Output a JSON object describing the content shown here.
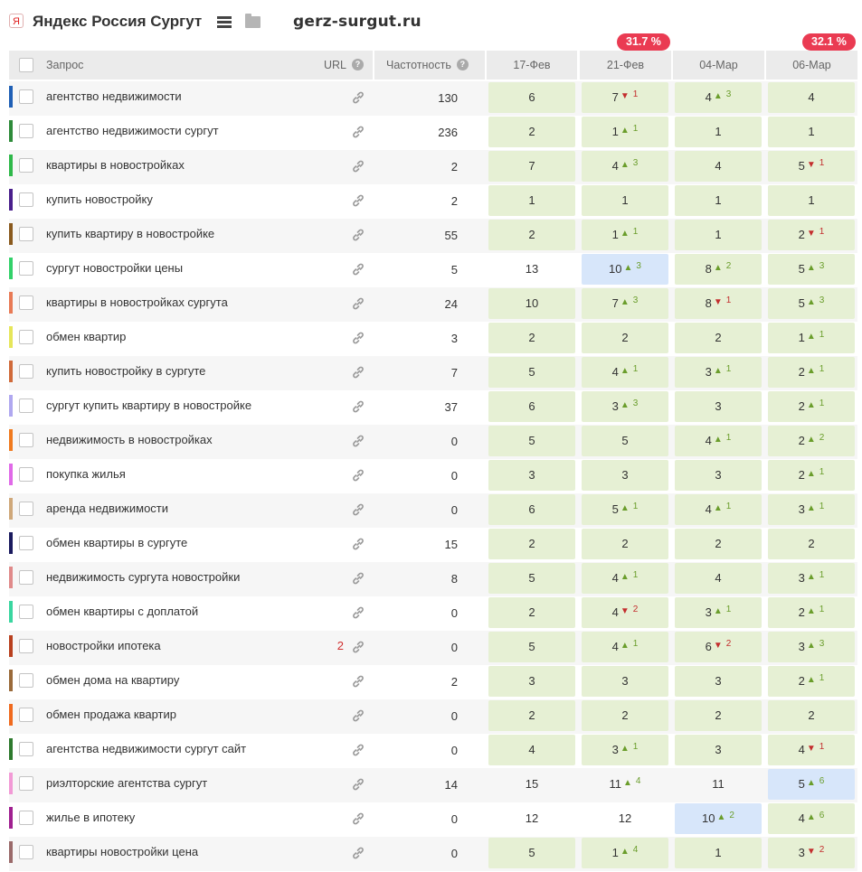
{
  "header": {
    "title": "Яндекс Россия Сургут",
    "site": "gerz-surgut.ru"
  },
  "badges": [
    "31.7 %",
    "32.1 %"
  ],
  "columns": {
    "query": "Запрос",
    "url": "URL",
    "frequency": "Частотность",
    "dates": [
      "17-Фев",
      "21-Фев",
      "04-Мар",
      "06-Мар"
    ]
  },
  "rows": [
    {
      "query": "агентство недвижимости",
      "color": "#1f5fb5",
      "url_count": "",
      "freq": "130",
      "cells": [
        [
          "6",
          "g",
          null,
          ""
        ],
        [
          "7",
          "g",
          "down",
          "1"
        ],
        [
          "4",
          "g",
          "up",
          "3"
        ],
        [
          "4",
          "g",
          null,
          ""
        ]
      ]
    },
    {
      "query": "агентство недвижимости сургут",
      "color": "#2e8b3a",
      "url_count": "",
      "freq": "236",
      "cells": [
        [
          "2",
          "g",
          null,
          ""
        ],
        [
          "1",
          "g",
          "up",
          "1"
        ],
        [
          "1",
          "g",
          null,
          ""
        ],
        [
          "1",
          "g",
          null,
          ""
        ]
      ]
    },
    {
      "query": "квартиры в новостройках",
      "color": "#2fb84a",
      "url_count": "",
      "freq": "2",
      "cells": [
        [
          "7",
          "g",
          null,
          ""
        ],
        [
          "4",
          "g",
          "up",
          "3"
        ],
        [
          "4",
          "g",
          null,
          ""
        ],
        [
          "5",
          "g",
          "down",
          "1"
        ]
      ]
    },
    {
      "query": "купить новостройку",
      "color": "#4a1f8c",
      "url_count": "",
      "freq": "2",
      "cells": [
        [
          "1",
          "g",
          null,
          ""
        ],
        [
          "1",
          "g",
          null,
          ""
        ],
        [
          "1",
          "g",
          null,
          ""
        ],
        [
          "1",
          "g",
          null,
          ""
        ]
      ]
    },
    {
      "query": "купить квартиру в новостройке",
      "color": "#8a5a1e",
      "url_count": "",
      "freq": "55",
      "cells": [
        [
          "2",
          "g",
          null,
          ""
        ],
        [
          "1",
          "g",
          "up",
          "1"
        ],
        [
          "1",
          "g",
          null,
          ""
        ],
        [
          "2",
          "g",
          "down",
          "1"
        ]
      ]
    },
    {
      "query": "сургут новостройки цены",
      "color": "#33d16a",
      "url_count": "",
      "freq": "5",
      "cells": [
        [
          "13",
          "",
          null,
          ""
        ],
        [
          "10",
          "b",
          "up",
          "3"
        ],
        [
          "8",
          "g",
          "up",
          "2"
        ],
        [
          "5",
          "g",
          "up",
          "3"
        ]
      ]
    },
    {
      "query": "квартиры в новостройках сургута",
      "color": "#e87a55",
      "url_count": "",
      "freq": "24",
      "cells": [
        [
          "10",
          "g",
          null,
          ""
        ],
        [
          "7",
          "g",
          "up",
          "3"
        ],
        [
          "8",
          "g",
          "down",
          "1"
        ],
        [
          "5",
          "g",
          "up",
          "3"
        ]
      ]
    },
    {
      "query": "обмен квартир",
      "color": "#e6e65a",
      "url_count": "",
      "freq": "3",
      "cells": [
        [
          "2",
          "g",
          null,
          ""
        ],
        [
          "2",
          "g",
          null,
          ""
        ],
        [
          "2",
          "g",
          null,
          ""
        ],
        [
          "1",
          "g",
          "up",
          "1"
        ]
      ]
    },
    {
      "query": "купить новостройку в сургуте",
      "color": "#d06a3a",
      "url_count": "",
      "freq": "7",
      "cells": [
        [
          "5",
          "g",
          null,
          ""
        ],
        [
          "4",
          "g",
          "up",
          "1"
        ],
        [
          "3",
          "g",
          "up",
          "1"
        ],
        [
          "2",
          "g",
          "up",
          "1"
        ]
      ]
    },
    {
      "query": "сургут купить квартиру в новостройке",
      "color": "#b0a8f0",
      "url_count": "",
      "freq": "37",
      "cells": [
        [
          "6",
          "g",
          null,
          ""
        ],
        [
          "3",
          "g",
          "up",
          "3"
        ],
        [
          "3",
          "g",
          null,
          ""
        ],
        [
          "2",
          "g",
          "up",
          "1"
        ]
      ]
    },
    {
      "query": "недвижимость в новостройках",
      "color": "#f07a1e",
      "url_count": "",
      "freq": "0",
      "cells": [
        [
          "5",
          "g",
          null,
          ""
        ],
        [
          "5",
          "g",
          null,
          ""
        ],
        [
          "4",
          "g",
          "up",
          "1"
        ],
        [
          "2",
          "g",
          "up",
          "2"
        ]
      ]
    },
    {
      "query": "покупка жилья",
      "color": "#e06ae8",
      "url_count": "",
      "freq": "0",
      "cells": [
        [
          "3",
          "g",
          null,
          ""
        ],
        [
          "3",
          "g",
          null,
          ""
        ],
        [
          "3",
          "g",
          null,
          ""
        ],
        [
          "2",
          "g",
          "up",
          "1"
        ]
      ]
    },
    {
      "query": "аренда недвижимости",
      "color": "#cfa87a",
      "url_count": "",
      "freq": "0",
      "cells": [
        [
          "6",
          "g",
          null,
          ""
        ],
        [
          "5",
          "g",
          "up",
          "1"
        ],
        [
          "4",
          "g",
          "up",
          "1"
        ],
        [
          "3",
          "g",
          "up",
          "1"
        ]
      ]
    },
    {
      "query": "обмен квартиры в сургуте",
      "color": "#1a1a5e",
      "url_count": "",
      "freq": "15",
      "cells": [
        [
          "2",
          "g",
          null,
          ""
        ],
        [
          "2",
          "g",
          null,
          ""
        ],
        [
          "2",
          "g",
          null,
          ""
        ],
        [
          "2",
          "g",
          null,
          ""
        ]
      ]
    },
    {
      "query": "недвижимость сургута новостройки",
      "color": "#e08a8a",
      "url_count": "",
      "freq": "8",
      "cells": [
        [
          "5",
          "g",
          null,
          ""
        ],
        [
          "4",
          "g",
          "up",
          "1"
        ],
        [
          "4",
          "g",
          null,
          ""
        ],
        [
          "3",
          "g",
          "up",
          "1"
        ]
      ]
    },
    {
      "query": "обмен квартиры с доплатой",
      "color": "#3ad6a0",
      "url_count": "",
      "freq": "0",
      "cells": [
        [
          "2",
          "g",
          null,
          ""
        ],
        [
          "4",
          "g",
          "down",
          "2"
        ],
        [
          "3",
          "g",
          "up",
          "1"
        ],
        [
          "2",
          "g",
          "up",
          "1"
        ]
      ]
    },
    {
      "query": "новостройки ипотека",
      "color": "#b8401e",
      "url_count": "2",
      "freq": "0",
      "cells": [
        [
          "5",
          "g",
          null,
          ""
        ],
        [
          "4",
          "g",
          "up",
          "1"
        ],
        [
          "6",
          "g",
          "down",
          "2"
        ],
        [
          "3",
          "g",
          "up",
          "3"
        ]
      ]
    },
    {
      "query": "обмен дома на квартиру",
      "color": "#9a6a3a",
      "url_count": "",
      "freq": "2",
      "cells": [
        [
          "3",
          "g",
          null,
          ""
        ],
        [
          "3",
          "g",
          null,
          ""
        ],
        [
          "3",
          "g",
          null,
          ""
        ],
        [
          "2",
          "g",
          "up",
          "1"
        ]
      ]
    },
    {
      "query": "обмен продажа квартир",
      "color": "#f06a1e",
      "url_count": "",
      "freq": "0",
      "cells": [
        [
          "2",
          "g",
          null,
          ""
        ],
        [
          "2",
          "g",
          null,
          ""
        ],
        [
          "2",
          "g",
          null,
          ""
        ],
        [
          "2",
          "g",
          null,
          ""
        ]
      ]
    },
    {
      "query": "агентства недвижимости сургут сайт",
      "color": "#2e7a2e",
      "url_count": "",
      "freq": "0",
      "cells": [
        [
          "4",
          "g",
          null,
          ""
        ],
        [
          "3",
          "g",
          "up",
          "1"
        ],
        [
          "3",
          "g",
          null,
          ""
        ],
        [
          "4",
          "g",
          "down",
          "1"
        ]
      ]
    },
    {
      "query": "риэлторские агентства сургут",
      "color": "#f29ad6",
      "url_count": "",
      "freq": "14",
      "cells": [
        [
          "15",
          "",
          null,
          ""
        ],
        [
          "11",
          "",
          "up",
          "4"
        ],
        [
          "11",
          "",
          null,
          ""
        ],
        [
          "5",
          "b",
          "up",
          "6"
        ]
      ]
    },
    {
      "query": "жилье в ипотеку",
      "color": "#a02090",
      "url_count": "",
      "freq": "0",
      "cells": [
        [
          "12",
          "",
          null,
          ""
        ],
        [
          "12",
          "",
          null,
          ""
        ],
        [
          "10",
          "b",
          "up",
          "2"
        ],
        [
          "4",
          "g",
          "up",
          "6"
        ]
      ]
    },
    {
      "query": "квартиры новостройки цена",
      "color": "#9a6a6a",
      "url_count": "",
      "freq": "0",
      "cells": [
        [
          "5",
          "g",
          null,
          ""
        ],
        [
          "1",
          "g",
          "up",
          "4"
        ],
        [
          "1",
          "g",
          null,
          ""
        ],
        [
          "3",
          "g",
          "down",
          "2"
        ]
      ]
    }
  ]
}
